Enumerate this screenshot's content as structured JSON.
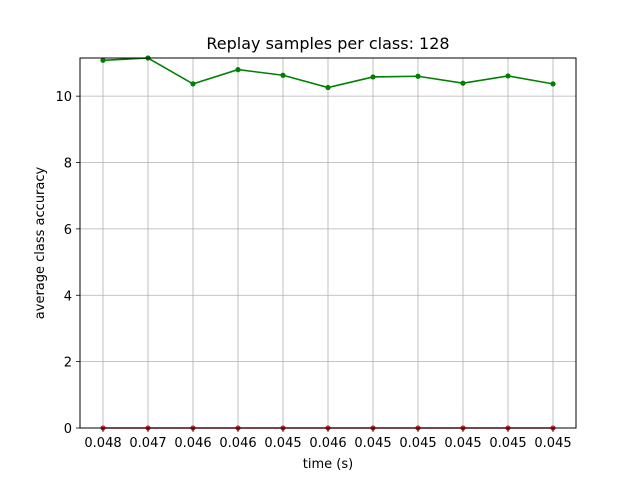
{
  "chart_data": {
    "type": "line",
    "title": "Replay samples per class: 128",
    "xlabel": "time (s)",
    "ylabel": "average class accuracy",
    "x_tick_labels": [
      "0.048",
      "0.047",
      "0.046",
      "0.046",
      "0.045",
      "0.046",
      "0.045",
      "0.045",
      "0.045",
      "0.045",
      "0.045"
    ],
    "y_ticks": [
      0,
      2,
      4,
      6,
      8,
      10
    ],
    "ylim": [
      0,
      11.15
    ],
    "grid": true,
    "series": [
      {
        "color": "#008000",
        "marker": "circle",
        "values": [
          11.08,
          11.15,
          10.37,
          10.8,
          10.63,
          10.26,
          10.58,
          10.6,
          10.39,
          10.61,
          10.37
        ]
      },
      {
        "color": "#d62728",
        "marker": "circle",
        "values": [
          0,
          0,
          0,
          0,
          0,
          0,
          0,
          0,
          0,
          0,
          0
        ]
      }
    ]
  }
}
